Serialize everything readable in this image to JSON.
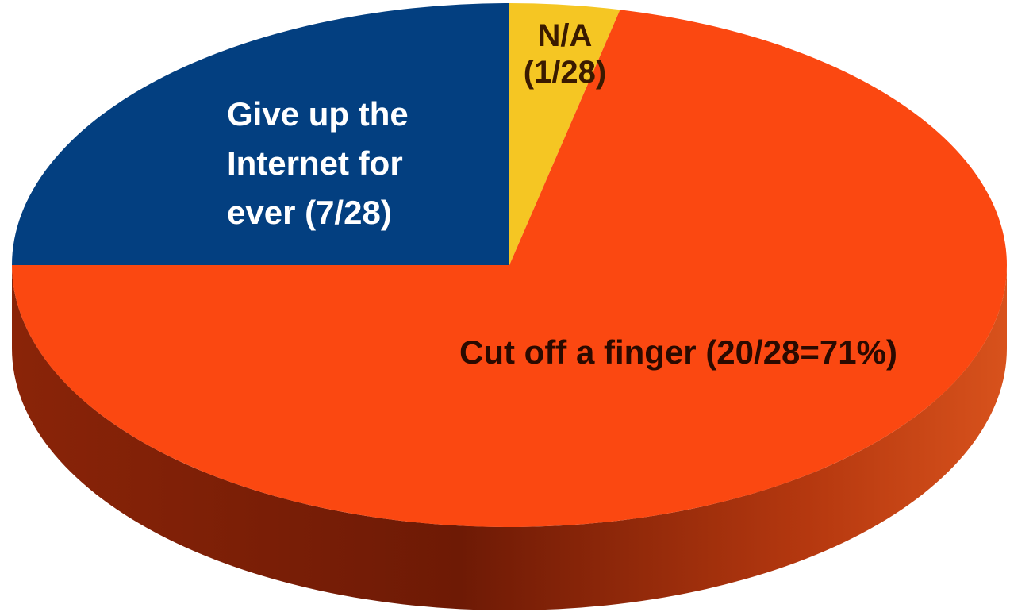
{
  "chart_data": {
    "type": "pie",
    "style": "3d",
    "title": "",
    "slices": [
      {
        "label_lines": [
          "N/A",
          "(1/28)"
        ],
        "value": 1,
        "total": 28,
        "color": "#f5c623",
        "label_color": "#3a1a00"
      },
      {
        "label_lines": [
          "Cut off a finger (20/28=71%)"
        ],
        "value": 20,
        "total": 28,
        "color": "#fb4811",
        "label_color": "#2a0a00"
      },
      {
        "label_lines": [
          "Give up the",
          "Internet for",
          "ever (7/28)"
        ],
        "value": 7,
        "total": 28,
        "color": "#033f80",
        "label_color": "#ffffff"
      }
    ],
    "legend": "none"
  }
}
